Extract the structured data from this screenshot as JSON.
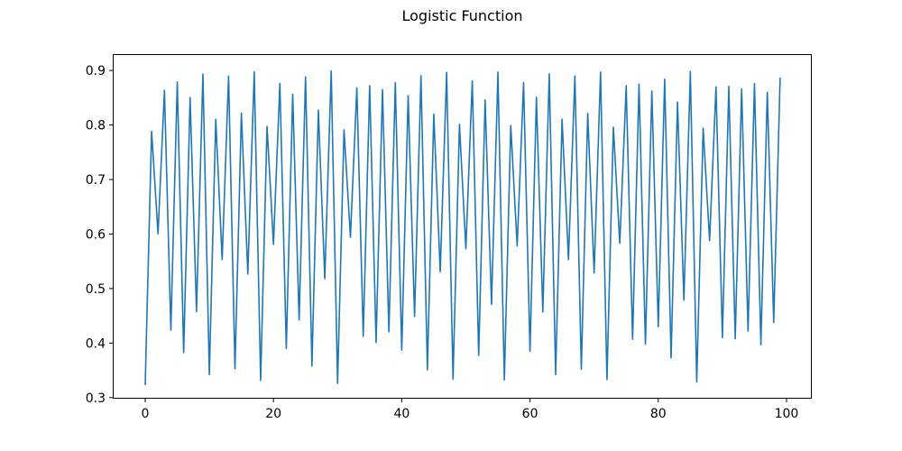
{
  "chart_data": {
    "type": "line",
    "title": "Logistic Function",
    "xlabel": "",
    "ylabel": "",
    "grid": false,
    "legend": "none",
    "background_color": "#ffffff",
    "spine_color": "#000000",
    "tick_color": "#000000",
    "line_color": "#1f77b4",
    "xlim": [
      -5.06,
      103.94
    ],
    "ylim": [
      0.298,
      0.93
    ],
    "xticks": [
      0,
      20,
      40,
      60,
      80,
      100
    ],
    "yticks": [
      0.3,
      0.4,
      0.5,
      0.6,
      0.7,
      0.8,
      0.9
    ],
    "x_start": 0,
    "x_step": 1,
    "values": [
      0.324,
      0.7885,
      0.6004,
      0.8637,
      0.4238,
      0.8791,
      0.3827,
      0.8505,
      0.4578,
      0.8936,
      0.3423,
      0.8104,
      0.5531,
      0.8899,
      0.3528,
      0.822,
      0.5267,
      0.8974,
      0.3314,
      0.7976,
      0.5811,
      0.8763,
      0.3901,
      0.8565,
      0.4423,
      0.888,
      0.3579,
      0.8274,
      0.518,
      0.8993,
      0.3261,
      0.7911,
      0.5941,
      0.8681,
      0.4123,
      0.8723,
      0.4011,
      0.8648,
      0.4209,
      0.8775,
      0.3871,
      0.8541,
      0.4486,
      0.8905,
      0.351,
      0.82,
      0.531,
      0.8965,
      0.334,
      0.801,
      0.573,
      0.881,
      0.3775,
      0.846,
      0.471,
      0.897,
      0.3325,
      0.799,
      0.578,
      0.878,
      0.385,
      0.851,
      0.457,
      0.894,
      0.342,
      0.8105,
      0.553,
      0.89,
      0.352,
      0.8212,
      0.5286,
      0.897,
      0.333,
      0.796,
      0.583,
      0.872,
      0.407,
      0.875,
      0.398,
      0.8625,
      0.43,
      0.884,
      0.373,
      0.842,
      0.479,
      0.898,
      0.3286,
      0.794,
      0.588,
      0.87,
      0.41,
      0.871,
      0.408,
      0.866,
      0.422,
      0.876,
      0.397,
      0.86,
      0.438,
      0.886
    ]
  }
}
